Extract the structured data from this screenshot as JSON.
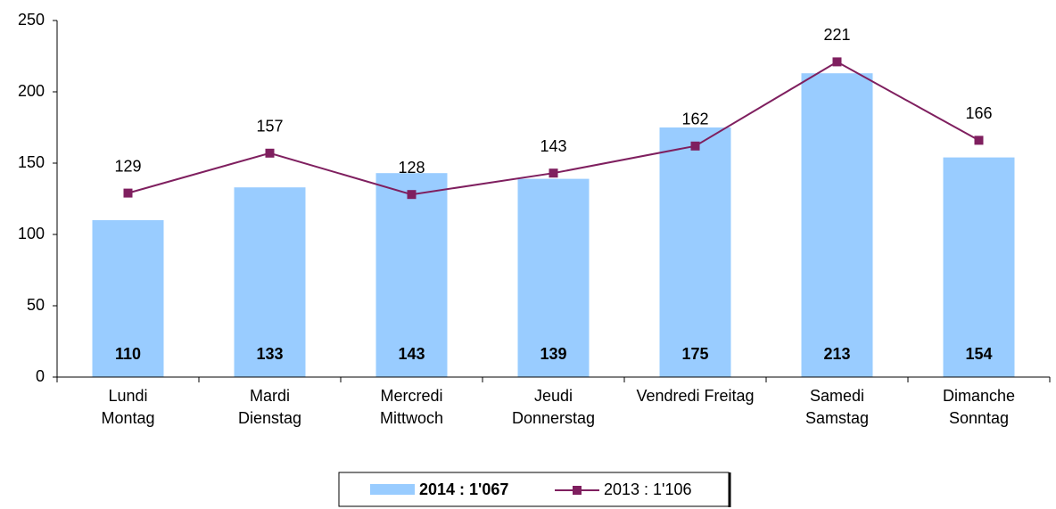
{
  "chart_data": {
    "type": "bar",
    "categories": [
      [
        "Lundi",
        "Montag"
      ],
      [
        "Mardi",
        "Dienstag"
      ],
      [
        "Mercredi",
        "Mittwoch"
      ],
      [
        "Jeudi",
        "Donnerstag"
      ],
      [
        "Vendredi Freitag"
      ],
      [
        "Samedi",
        "Samstag"
      ],
      [
        "Dimanche",
        "Sonntag"
      ]
    ],
    "series": [
      {
        "name": "2014 : 1'067",
        "type": "bar",
        "color": "#99ccff",
        "values": [
          110,
          133,
          143,
          139,
          175,
          213,
          154
        ]
      },
      {
        "name": "2013 : 1'106",
        "type": "line",
        "color": "#7f1f5f",
        "values": [
          129,
          157,
          128,
          143,
          162,
          221,
          166
        ]
      }
    ],
    "ylim": [
      0,
      250
    ],
    "yticks": [
      0,
      50,
      100,
      150,
      200,
      250
    ],
    "grid": false,
    "legend": "bottom"
  }
}
